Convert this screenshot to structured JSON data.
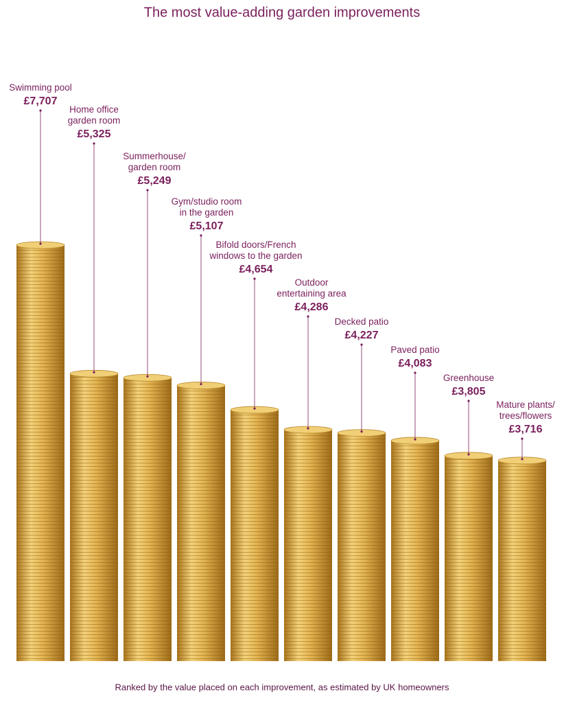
{
  "chart_data": {
    "type": "bar",
    "title": "The most value-adding garden improvements",
    "footnote": "Ranked by the value placed on each improvement, as estimated by UK homeowners",
    "categories": [
      "Swimming pool",
      "Home office\ngarden room",
      "Summerhouse/\ngarden room",
      "Gym/studio room\nin the garden",
      "Bifold doors/French\nwindows to the garden",
      "Outdoor\nentertaining area",
      "Decked patio",
      "Paved patio",
      "Greenhouse",
      "Mature plants/\ntrees/flowers"
    ],
    "values": [
      7707,
      5325,
      5249,
      5107,
      4654,
      4286,
      4227,
      4083,
      3805,
      3716
    ],
    "value_labels": [
      "£7,707",
      "£5,325",
      "£5,249",
      "£5,107",
      "£4,654",
      "£4,286",
      "£4,227",
      "£4,083",
      "£3,805",
      "£3,716"
    ],
    "color": "#d9a838"
  }
}
